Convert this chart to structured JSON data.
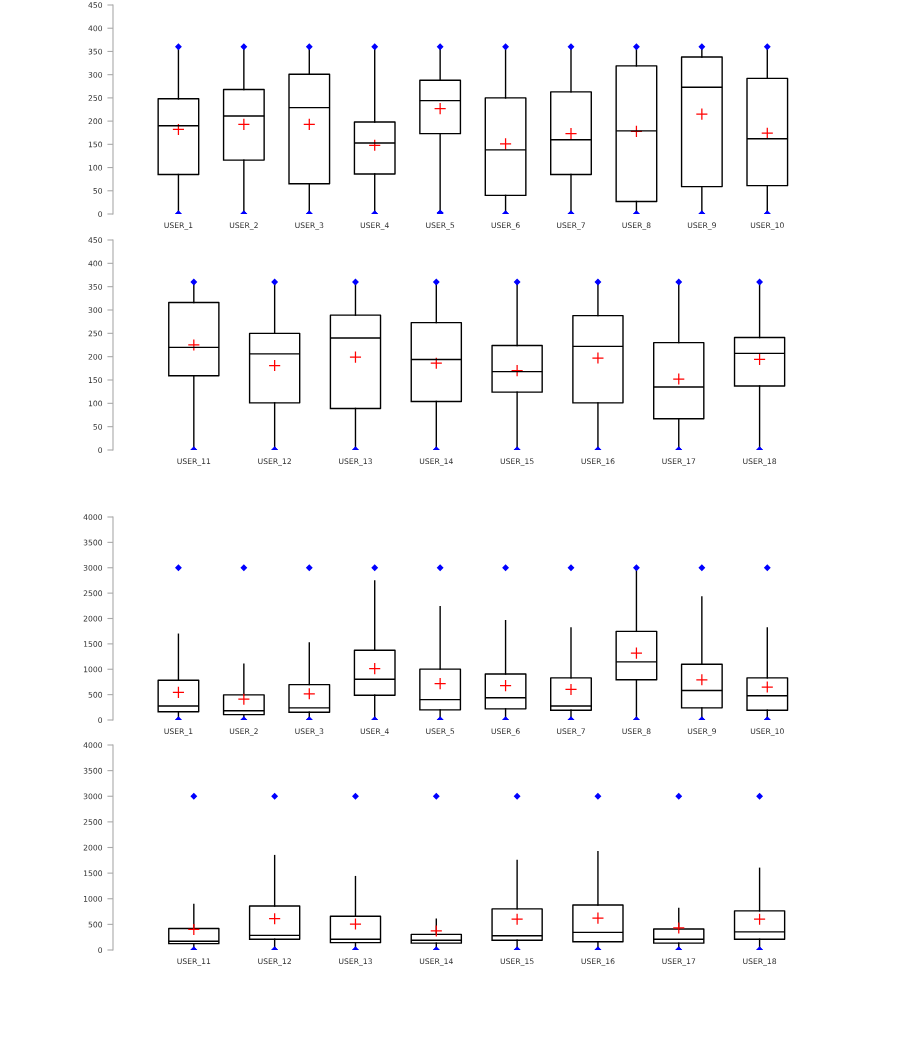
{
  "chart_data": [
    {
      "type": "box",
      "categories": [
        "USER_1",
        "USER_2",
        "USER_3",
        "USER_4",
        "USER_5",
        "USER_6",
        "USER_7",
        "USER_8",
        "USER_9",
        "USER_10"
      ],
      "ylim": [
        0,
        450
      ],
      "yticks": [
        0,
        50,
        100,
        150,
        200,
        250,
        300,
        350,
        400,
        450
      ],
      "boxes": [
        {
          "low": 0,
          "q1": 85,
          "median": 190,
          "q3": 248,
          "high": 360,
          "mean": 182,
          "outliers": [
            0,
            360
          ]
        },
        {
          "low": 0,
          "q1": 116,
          "median": 211,
          "q3": 268,
          "high": 360,
          "mean": 193,
          "outliers": [
            0,
            360
          ]
        },
        {
          "low": 0,
          "q1": 65,
          "median": 229,
          "q3": 301,
          "high": 360,
          "mean": 193,
          "outliers": [
            0,
            360
          ]
        },
        {
          "low": 0,
          "q1": 86,
          "median": 153,
          "q3": 198,
          "high": 360,
          "mean": 148,
          "outliers": [
            0,
            360
          ]
        },
        {
          "low": 2,
          "q1": 173,
          "median": 244,
          "q3": 288,
          "high": 360,
          "mean": 227,
          "outliers": [
            2,
            360
          ]
        },
        {
          "low": 0,
          "q1": 40,
          "median": 138,
          "q3": 250,
          "high": 360,
          "mean": 151,
          "outliers": [
            0,
            360
          ]
        },
        {
          "low": 0,
          "q1": 85,
          "median": 160,
          "q3": 263,
          "high": 360,
          "mean": 173,
          "outliers": [
            0,
            360
          ]
        },
        {
          "low": 0,
          "q1": 27,
          "median": 179,
          "q3": 319,
          "high": 360,
          "mean": 178,
          "outliers": [
            0,
            360
          ]
        },
        {
          "low": 0,
          "q1": 59,
          "median": 273,
          "q3": 338,
          "high": 360,
          "mean": 215,
          "outliers": [
            0,
            360
          ]
        },
        {
          "low": 0,
          "q1": 61,
          "median": 162,
          "q3": 292,
          "high": 360,
          "mean": 174,
          "outliers": [
            0,
            360
          ]
        }
      ]
    },
    {
      "type": "box",
      "categories": [
        "USER_11",
        "USER_12",
        "USER_13",
        "USER_14",
        "USER_15",
        "USER_16",
        "USER_17",
        "USER_18"
      ],
      "ylim": [
        0,
        450
      ],
      "yticks": [
        0,
        50,
        100,
        150,
        200,
        250,
        300,
        350,
        400,
        450
      ],
      "boxes": [
        {
          "low": 0,
          "q1": 159,
          "median": 220,
          "q3": 316,
          "high": 360,
          "mean": 225,
          "outliers": [
            0,
            360
          ]
        },
        {
          "low": 0,
          "q1": 101,
          "median": 206,
          "q3": 250,
          "high": 360,
          "mean": 181,
          "outliers": [
            0,
            360
          ]
        },
        {
          "low": 0,
          "q1": 89,
          "median": 240,
          "q3": 289,
          "high": 360,
          "mean": 199,
          "outliers": [
            0,
            360
          ]
        },
        {
          "low": 0,
          "q1": 104,
          "median": 194,
          "q3": 273,
          "high": 360,
          "mean": 186,
          "outliers": [
            0,
            360
          ]
        },
        {
          "low": 0,
          "q1": 124,
          "median": 168,
          "q3": 224,
          "high": 360,
          "mean": 170,
          "outliers": [
            0,
            360
          ]
        },
        {
          "low": 0,
          "q1": 101,
          "median": 222,
          "q3": 288,
          "high": 360,
          "mean": 197,
          "outliers": [
            0,
            360
          ]
        },
        {
          "low": 0,
          "q1": 67,
          "median": 135,
          "q3": 230,
          "high": 360,
          "mean": 152,
          "outliers": [
            0,
            360
          ]
        },
        {
          "low": 0,
          "q1": 137,
          "median": 207,
          "q3": 241,
          "high": 360,
          "mean": 194,
          "outliers": [
            0,
            360
          ]
        }
      ]
    },
    {
      "type": "box",
      "categories": [
        "USER_1",
        "USER_2",
        "USER_3",
        "USER_4",
        "USER_5",
        "USER_6",
        "USER_7",
        "USER_8",
        "USER_9",
        "USER_10"
      ],
      "ylim": [
        0,
        4000
      ],
      "yticks": [
        0,
        500,
        1000,
        1500,
        2000,
        2500,
        3000,
        3500,
        4000
      ],
      "boxes": [
        {
          "low": 0,
          "q1": 162,
          "median": 277,
          "q3": 783,
          "high": 1690,
          "mean": 544,
          "outliers": [
            0,
            3000
          ]
        },
        {
          "low": 0,
          "q1": 105,
          "median": 181,
          "q3": 496,
          "high": 1098,
          "mean": 410,
          "outliers": [
            0,
            3000
          ]
        },
        {
          "low": 0,
          "q1": 153,
          "median": 239,
          "q3": 697,
          "high": 1518,
          "mean": 516,
          "outliers": [
            0,
            3000
          ]
        },
        {
          "low": 0,
          "q1": 487,
          "median": 802,
          "q3": 1375,
          "high": 2740,
          "mean": 1012,
          "outliers": [
            0,
            3000
          ]
        },
        {
          "low": 0,
          "q1": 200,
          "median": 401,
          "q3": 1002,
          "high": 2234,
          "mean": 716,
          "outliers": [
            0,
            3000
          ]
        },
        {
          "low": 0,
          "q1": 220,
          "median": 439,
          "q3": 907,
          "high": 1957,
          "mean": 678,
          "outliers": [
            0,
            3000
          ]
        },
        {
          "low": 0,
          "q1": 191,
          "median": 277,
          "q3": 831,
          "high": 1814,
          "mean": 601,
          "outliers": [
            0,
            3000
          ]
        },
        {
          "low": 0,
          "q1": 792,
          "median": 1146,
          "q3": 1747,
          "high": 3000,
          "mean": 1317,
          "outliers": [
            0,
            3000
          ]
        },
        {
          "low": 0,
          "q1": 239,
          "median": 582,
          "q3": 1098,
          "high": 2425,
          "mean": 793,
          "outliers": [
            0,
            3000
          ]
        },
        {
          "low": 0,
          "q1": 191,
          "median": 477,
          "q3": 831,
          "high": 1814,
          "mean": 649,
          "outliers": [
            0,
            3000
          ]
        }
      ]
    },
    {
      "type": "box",
      "categories": [
        "USER_11",
        "USER_12",
        "USER_13",
        "USER_14",
        "USER_15",
        "USER_16",
        "USER_17",
        "USER_18"
      ],
      "ylim": [
        0,
        4000
      ],
      "yticks": [
        0,
        500,
        1000,
        1500,
        2000,
        2500,
        3000,
        3500,
        4000
      ],
      "boxes": [
        {
          "low": 0,
          "q1": 124,
          "median": 172,
          "q3": 420,
          "high": 888,
          "mean": 401,
          "outliers": [
            0,
            3000
          ]
        },
        {
          "low": 0,
          "q1": 210,
          "median": 286,
          "q3": 859,
          "high": 1842,
          "mean": 611,
          "outliers": [
            0,
            3000
          ]
        },
        {
          "low": 0,
          "q1": 143,
          "median": 210,
          "q3": 659,
          "high": 1432,
          "mean": 506,
          "outliers": [
            0,
            3000
          ]
        },
        {
          "low": 0,
          "q1": 134,
          "median": 191,
          "q3": 305,
          "high": 601,
          "mean": 372,
          "outliers": [
            0,
            3000
          ]
        },
        {
          "low": 0,
          "q1": 191,
          "median": 277,
          "q3": 802,
          "high": 1747,
          "mean": 601,
          "outliers": [
            0,
            3000
          ]
        },
        {
          "low": 0,
          "q1": 162,
          "median": 344,
          "q3": 878,
          "high": 1919,
          "mean": 621,
          "outliers": [
            0,
            3000
          ]
        },
        {
          "low": 0,
          "q1": 134,
          "median": 210,
          "q3": 410,
          "high": 811,
          "mean": 430,
          "outliers": [
            0,
            3000
          ]
        },
        {
          "low": 0,
          "q1": 210,
          "median": 353,
          "q3": 764,
          "high": 1594,
          "mean": 601,
          "outliers": [
            0,
            3000
          ]
        }
      ]
    }
  ]
}
